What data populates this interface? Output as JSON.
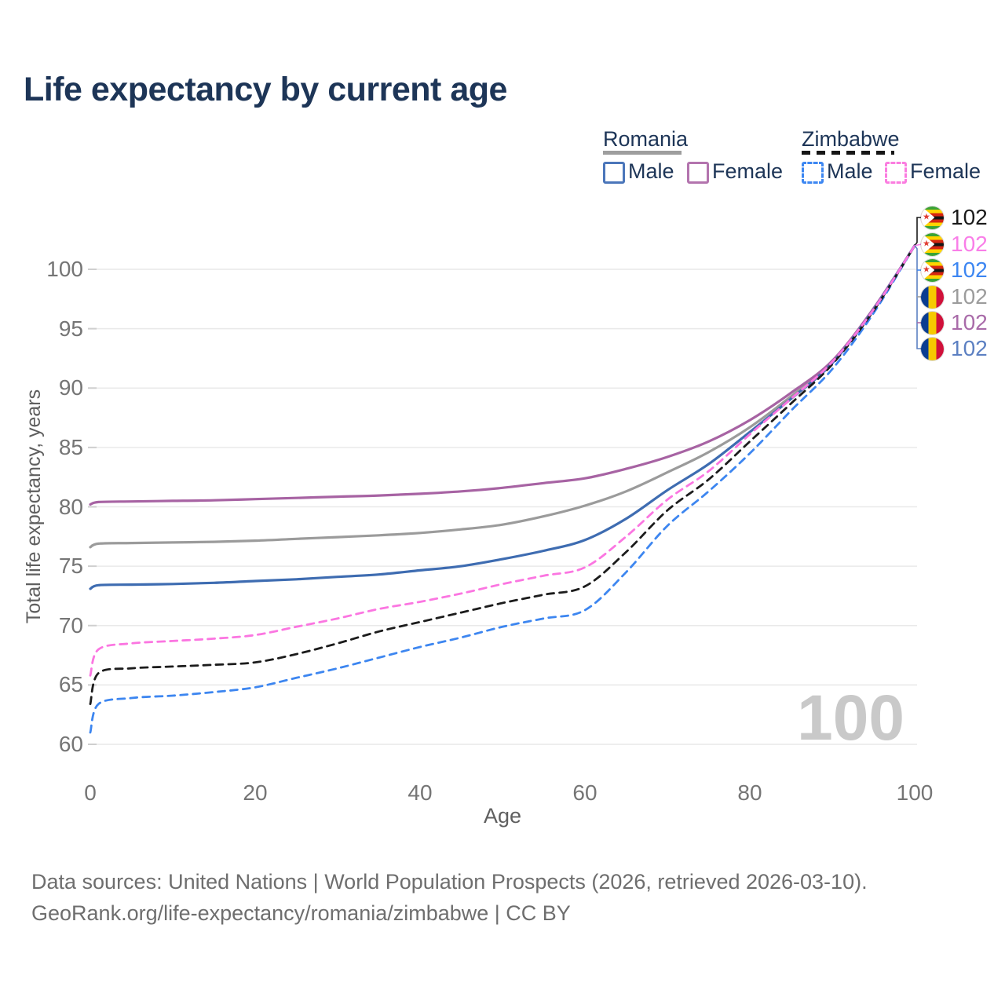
{
  "title": "Life expectancy by current age",
  "watermark": "100",
  "legend": {
    "groups": [
      {
        "name": "Romania",
        "style": "solid",
        "underline_color": "#9e9e9e",
        "items": [
          {
            "label": "Male",
            "color": "#4b76ba"
          },
          {
            "label": "Female",
            "color": "#b374ae"
          }
        ]
      },
      {
        "name": "Zimbabwe",
        "style": "dashed",
        "underline_color": "#161616",
        "items": [
          {
            "label": "Male",
            "color": "#3d87f2"
          },
          {
            "label": "Female",
            "color": "#fb7de0"
          }
        ]
      }
    ]
  },
  "end_labels": [
    {
      "series": "zimbabwe-total",
      "flag": "zimbabwe",
      "value": "102",
      "color": "#1a1a1a"
    },
    {
      "series": "zimbabwe-female",
      "flag": "zimbabwe",
      "value": "102",
      "color": "#f97ee8"
    },
    {
      "series": "zimbabwe-male",
      "flag": "zimbabwe",
      "value": "102",
      "color": "#3c86f2"
    },
    {
      "series": "romania-total",
      "flag": "romania",
      "value": "102",
      "color": "#9c9c9c"
    },
    {
      "series": "romania-female",
      "flag": "romania",
      "value": "102",
      "color": "#a96ba9"
    },
    {
      "series": "romania-male",
      "flag": "romania",
      "value": "102",
      "color": "#5c80c2"
    }
  ],
  "chart_data": {
    "type": "line",
    "title": "Life expectancy by current age",
    "xlabel": "Age",
    "ylabel": "Total life expectancy, years",
    "xlim": [
      0,
      100
    ],
    "ylim": [
      60,
      102
    ],
    "xticks": [
      0,
      20,
      40,
      60,
      80,
      100
    ],
    "yticks": [
      60,
      65,
      70,
      75,
      80,
      85,
      90,
      95,
      100
    ],
    "grid": "horizontal",
    "legend_position": "top-right",
    "x": [
      0,
      1,
      5,
      10,
      15,
      20,
      25,
      30,
      35,
      40,
      45,
      50,
      55,
      60,
      65,
      70,
      75,
      80,
      85,
      90,
      95,
      100
    ],
    "series": [
      {
        "name": "Romania Total",
        "country": "Romania",
        "sex": "total",
        "dash": "solid",
        "color": "#9b9b9b",
        "values": [
          76.6,
          76.9,
          76.95,
          77.0,
          77.05,
          77.15,
          77.3,
          77.45,
          77.6,
          77.8,
          78.1,
          78.5,
          79.2,
          80.1,
          81.3,
          82.9,
          84.6,
          86.7,
          89.3,
          92.2,
          96.6,
          102
        ]
      },
      {
        "name": "Romania Female",
        "country": "Romania",
        "sex": "female",
        "dash": "solid",
        "color": "#a763a3",
        "values": [
          80.2,
          80.4,
          80.45,
          80.5,
          80.55,
          80.65,
          80.75,
          80.85,
          80.95,
          81.1,
          81.3,
          81.6,
          82.0,
          82.4,
          83.2,
          84.2,
          85.5,
          87.3,
          89.6,
          92.3,
          96.7,
          102
        ]
      },
      {
        "name": "Romania Male",
        "country": "Romania",
        "sex": "male",
        "dash": "solid",
        "color": "#3e6cb1",
        "values": [
          73.1,
          73.4,
          73.45,
          73.5,
          73.6,
          73.75,
          73.9,
          74.1,
          74.3,
          74.65,
          75.0,
          75.6,
          76.3,
          77.2,
          79.0,
          81.4,
          83.6,
          86.3,
          89.1,
          92.1,
          96.6,
          102
        ]
      },
      {
        "name": "Zimbabwe Male",
        "country": "Zimbabwe",
        "sex": "male",
        "dash": "dashed",
        "color": "#3d86f0",
        "values": [
          61.0,
          63.4,
          63.9,
          64.1,
          64.4,
          64.8,
          65.6,
          66.4,
          67.3,
          68.2,
          69.0,
          69.9,
          70.6,
          71.3,
          74.5,
          78.4,
          81.3,
          84.5,
          88.1,
          91.6,
          96.3,
          102
        ]
      },
      {
        "name": "Zimbabwe Total",
        "country": "Zimbabwe",
        "sex": "total",
        "dash": "dashed",
        "color": "#1c1c1c",
        "values": [
          63.4,
          66.0,
          66.4,
          66.55,
          66.7,
          66.9,
          67.6,
          68.5,
          69.5,
          70.3,
          71.1,
          71.9,
          72.6,
          73.3,
          76.2,
          79.7,
          82.3,
          85.5,
          88.7,
          92.0,
          96.5,
          102
        ]
      },
      {
        "name": "Zimbabwe Female",
        "country": "Zimbabwe",
        "sex": "female",
        "dash": "dashed",
        "color": "#fb76e1",
        "values": [
          65.8,
          68.0,
          68.5,
          68.7,
          68.9,
          69.2,
          69.9,
          70.6,
          71.4,
          72.0,
          72.7,
          73.5,
          74.2,
          74.9,
          77.5,
          80.6,
          83.0,
          86.1,
          89.1,
          92.2,
          96.6,
          102
        ]
      }
    ]
  },
  "footer": {
    "line1": "Data sources: United Nations | World Population Prospects (2026, retrieved 2026-03-10).",
    "line2": "GeoRank.org/life-expectancy/romania/zimbabwe | CC BY"
  }
}
